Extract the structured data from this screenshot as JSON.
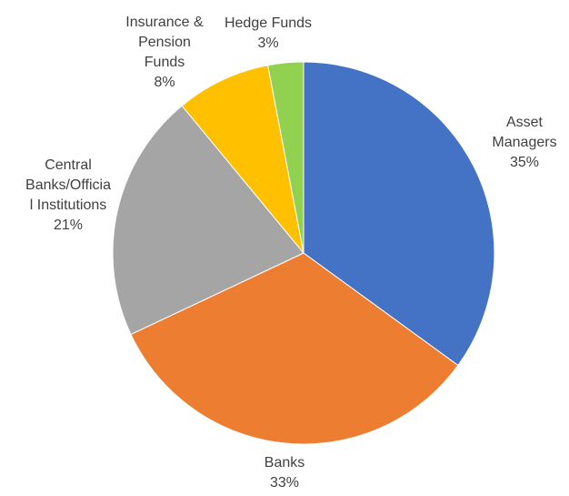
{
  "chart_data": {
    "type": "pie",
    "title": "",
    "start_angle_deg": 90,
    "direction": "clockwise",
    "slices": [
      {
        "category_lines": [
          "Asset",
          "Managers"
        ],
        "value_label": "35%",
        "value": 35,
        "color": "#4472C4"
      },
      {
        "category_lines": [
          "Banks"
        ],
        "value_label": "33%",
        "value": 33,
        "color": "#ED7D31"
      },
      {
        "category_lines": [
          "Central",
          "Banks/Officia",
          "l Institutions"
        ],
        "value_label": "21%",
        "value": 21,
        "color": "#A5A5A5"
      },
      {
        "category_lines": [
          "Insurance &",
          "Pension",
          "Funds"
        ],
        "value_label": "8%",
        "value": 8,
        "color": "#FFC000"
      },
      {
        "category_lines": [
          "Hedge Funds"
        ],
        "value_label": "3%",
        "value": 3,
        "color": "#92D050"
      }
    ]
  }
}
